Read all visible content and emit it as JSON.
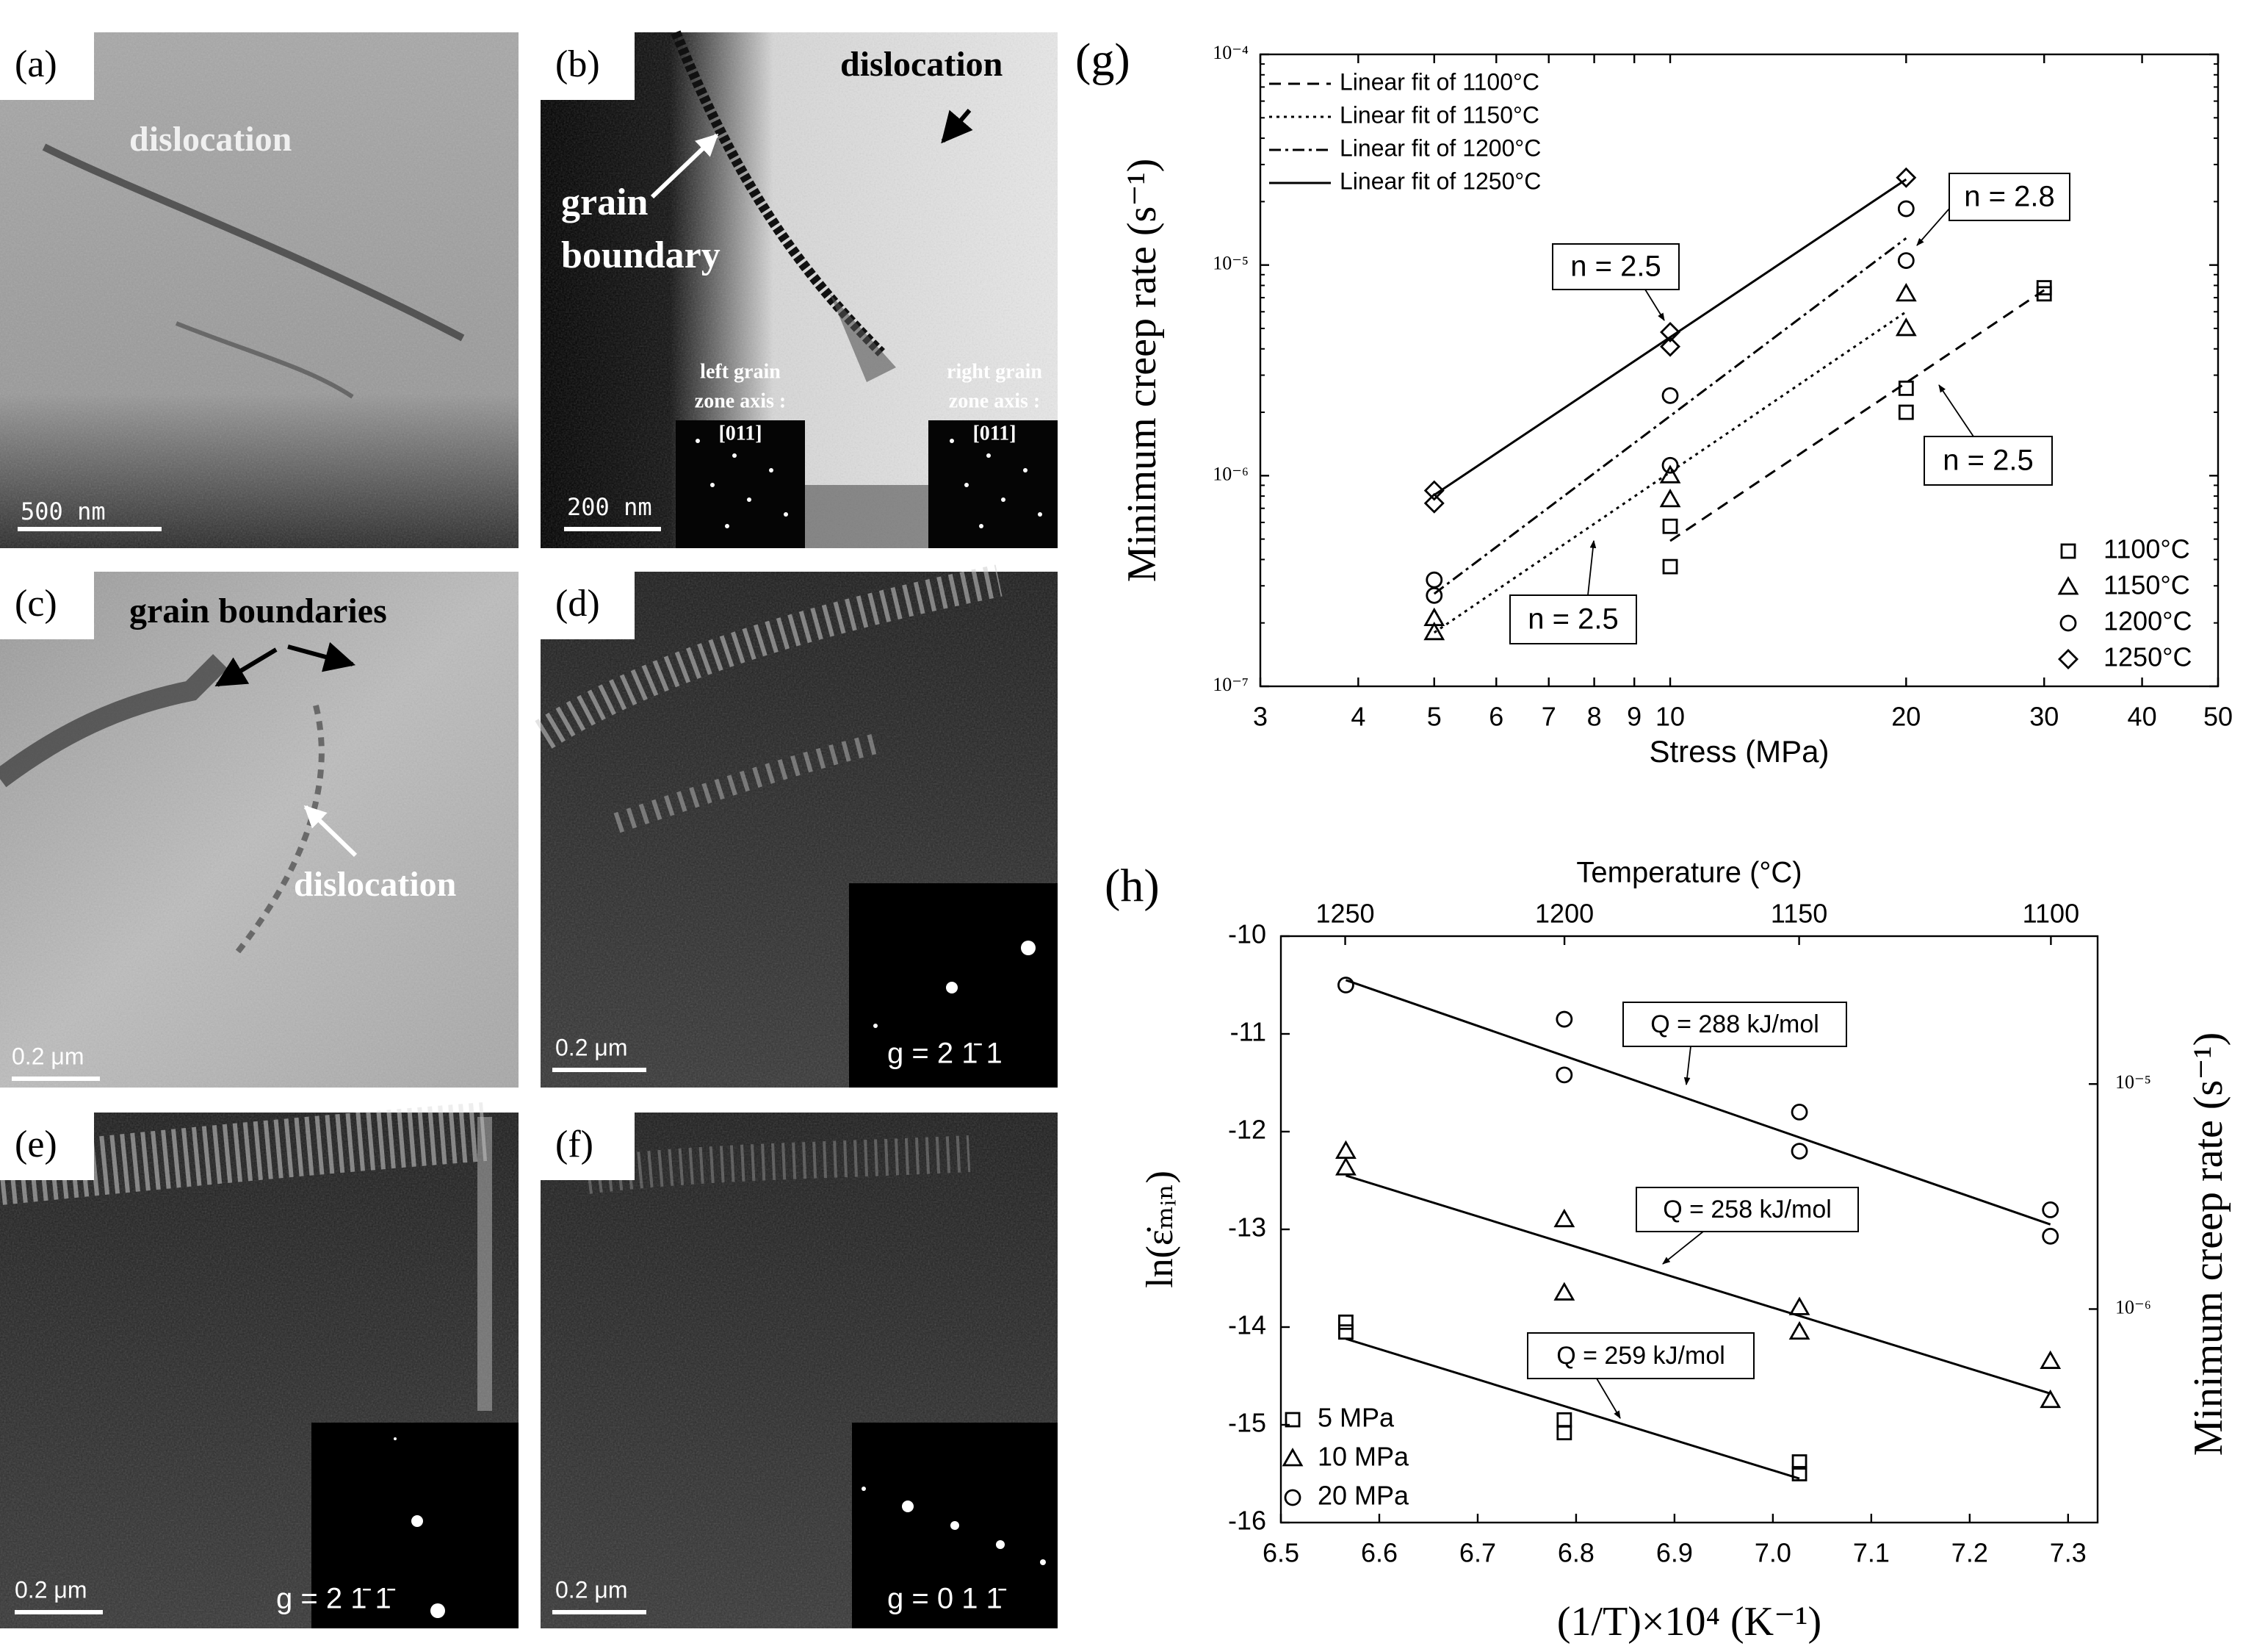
{
  "panels": [
    {
      "label": "(a)",
      "texts": [
        "dislocation"
      ],
      "scale": "500 nm"
    },
    {
      "label": "(b)",
      "texts": [
        "dislocation",
        "grain",
        "boundary",
        "left grain",
        "zone axis :",
        "[011]",
        "right grain",
        "zone axis :",
        "[011]"
      ],
      "scale": "200 nm"
    },
    {
      "label": "(c)",
      "texts": [
        "grain boundaries",
        "dislocation"
      ],
      "scale": "0.2 μm"
    },
    {
      "label": "(d)",
      "texts": [
        "g = 2 1̄ 1"
      ],
      "scale": "0.2 μm"
    },
    {
      "label": "(e)",
      "texts": [
        "g = 2 1̄ 1̄"
      ],
      "scale": "0.2 μm"
    },
    {
      "label": "(f)",
      "texts": [
        "g = 0 1 1̄"
      ],
      "scale": "0.2 μm"
    }
  ],
  "chart_data": [
    {
      "type": "scatter",
      "title": "(g)",
      "xlabel": "Stress (MPa)",
      "ylabel": "Minimum creep rate (s⁻¹)",
      "xscale": "log",
      "yscale": "log",
      "xlim": [
        3,
        50
      ],
      "ylim": [
        1e-07,
        0.0001
      ],
      "xticks": [
        3,
        4,
        5,
        6,
        7,
        8,
        9,
        10,
        20,
        30,
        40,
        50
      ],
      "yticks": [
        {
          "value": 1e-07,
          "label": "10⁻⁷"
        },
        {
          "value": 1e-06,
          "label": "10⁻⁶"
        },
        {
          "value": 1e-05,
          "label": "10⁻⁵"
        },
        {
          "value": 0.0001,
          "label": "10⁻⁴"
        }
      ],
      "legend": "lower right",
      "fit_legend": "upper left",
      "series": [
        {
          "name": "1100°C",
          "marker": "square",
          "x": [
            10,
            10,
            20,
            20,
            30,
            30
          ],
          "values": [
            5.75e-07,
            3.7e-07,
            2.6e-06,
            2e-06,
            7.8e-06,
            7.3e-06
          ]
        },
        {
          "name": "1150°C",
          "marker": "triangle",
          "x": [
            5,
            5,
            10,
            10,
            20,
            20
          ],
          "values": [
            2.1e-07,
            1.8e-07,
            1e-06,
            7.7e-07,
            7.3e-06,
            5e-06
          ]
        },
        {
          "name": "1200°C",
          "marker": "circle",
          "x": [
            5,
            5,
            10,
            10,
            20,
            20
          ],
          "values": [
            3.2e-07,
            2.7e-07,
            2.4e-06,
            1.12e-06,
            1.85e-05,
            1.05e-05
          ]
        },
        {
          "name": "1250°C",
          "marker": "diamond",
          "x": [
            5,
            5,
            10,
            10,
            20
          ],
          "values": [
            8.5e-07,
            7.4e-07,
            4.8e-06,
            4.1e-06,
            2.6e-05
          ]
        }
      ],
      "fits": [
        {
          "name": "Linear fit of 1100°C",
          "style": "dashed",
          "x": [
            10,
            30
          ],
          "values": [
            4.9e-07,
            7.6e-06
          ]
        },
        {
          "name": "Linear fit of 1150°C",
          "style": "dotted",
          "x": [
            5,
            20
          ],
          "values": [
            1.8e-07,
            6e-06
          ]
        },
        {
          "name": "Linear fit of 1200°C",
          "style": "dashdot",
          "x": [
            5,
            20
          ],
          "values": [
            2.75e-07,
            1.34e-05
          ]
        },
        {
          "name": "Linear fit of 1250°C",
          "style": "solid",
          "x": [
            5,
            20
          ],
          "values": [
            8.1e-07,
            2.55e-05
          ]
        }
      ],
      "annotations": [
        "n = 2.5",
        "n = 2.8",
        "n = 2.5",
        "n = 2.5"
      ]
    },
    {
      "type": "scatter",
      "title": "(h)",
      "xlabel": "(1/T)×10⁴ (K⁻¹)",
      "ylabel": "ln(ε̇ₘᵢₙ)",
      "x2label": "Temperature (°C)",
      "y2label": "Minimum creep rate (s⁻¹)",
      "xlim": [
        6.5,
        7.33
      ],
      "ylim": [
        -16,
        -10
      ],
      "xticks": [
        6.5,
        6.6,
        6.7,
        6.8,
        6.9,
        {
          "value": 7,
          "label": "7.0"
        },
        7.1,
        7.2,
        7.3
      ],
      "yticks": [
        -10,
        -11,
        -12,
        -13,
        -14,
        -15,
        -16
      ],
      "x2ticks": [
        1250,
        1200,
        1150,
        1100
      ],
      "y2ticks": [
        {
          "value": 1e-05,
          "label": "10⁻⁵"
        },
        {
          "value": 1e-06,
          "label": "10⁻⁶"
        }
      ],
      "legend": "lower left",
      "series": [
        {
          "name": "5 MPa",
          "marker": "square",
          "x": [
            6.566,
            6.566,
            6.788,
            6.788,
            7.027,
            7.027
          ],
          "values": [
            -13.95,
            -14.05,
            -14.95,
            -15.08,
            -15.38,
            -15.5
          ]
        },
        {
          "name": "10 MPa",
          "marker": "triangle",
          "x": [
            6.566,
            6.566,
            6.788,
            6.788,
            7.027,
            7.027,
            7.282,
            7.282
          ],
          "values": [
            -12.2,
            -12.37,
            -12.9,
            -13.65,
            -13.8,
            -14.05,
            -14.35,
            -14.75
          ]
        },
        {
          "name": "20 MPa",
          "marker": "circle",
          "x": [
            6.566,
            6.788,
            6.788,
            7.027,
            7.027,
            7.282,
            7.282
          ],
          "values": [
            -10.5,
            -10.85,
            -11.42,
            -11.8,
            -12.2,
            -12.8,
            -13.07
          ]
        }
      ],
      "fits": [
        {
          "style": "solid",
          "x": [
            6.566,
            7.027
          ],
          "values": [
            -14.12,
            -15.55
          ]
        },
        {
          "style": "solid",
          "x": [
            6.566,
            7.282
          ],
          "values": [
            -12.45,
            -14.68
          ]
        },
        {
          "style": "solid",
          "x": [
            6.566,
            7.282
          ],
          "values": [
            -10.45,
            -12.95
          ]
        }
      ],
      "annotations": [
        "Q = 288 kJ/mol",
        "Q = 258 kJ/mol",
        "Q = 259 kJ/mol"
      ]
    }
  ]
}
